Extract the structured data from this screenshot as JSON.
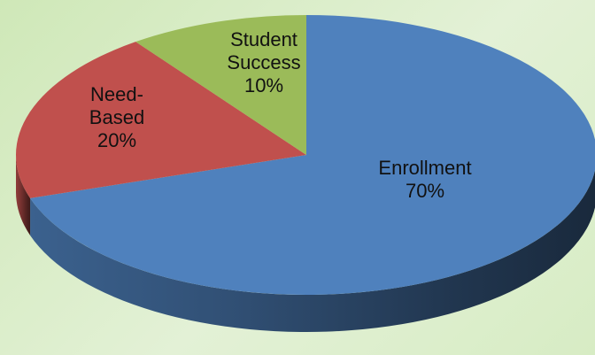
{
  "chart_data": {
    "type": "pie",
    "style": "3d",
    "categories": [
      "Enrollment",
      "Need-Based",
      "Student Success"
    ],
    "values": [
      70,
      20,
      10
    ],
    "labels": [
      [
        "Enrollment",
        "70%"
      ],
      [
        "Need-",
        "Based",
        "20%"
      ],
      [
        "Student",
        "Success",
        "10%"
      ]
    ],
    "colors": [
      "#4f81bd",
      "#c0504d",
      "#9bbb59"
    ],
    "title": "",
    "legend": "none"
  }
}
